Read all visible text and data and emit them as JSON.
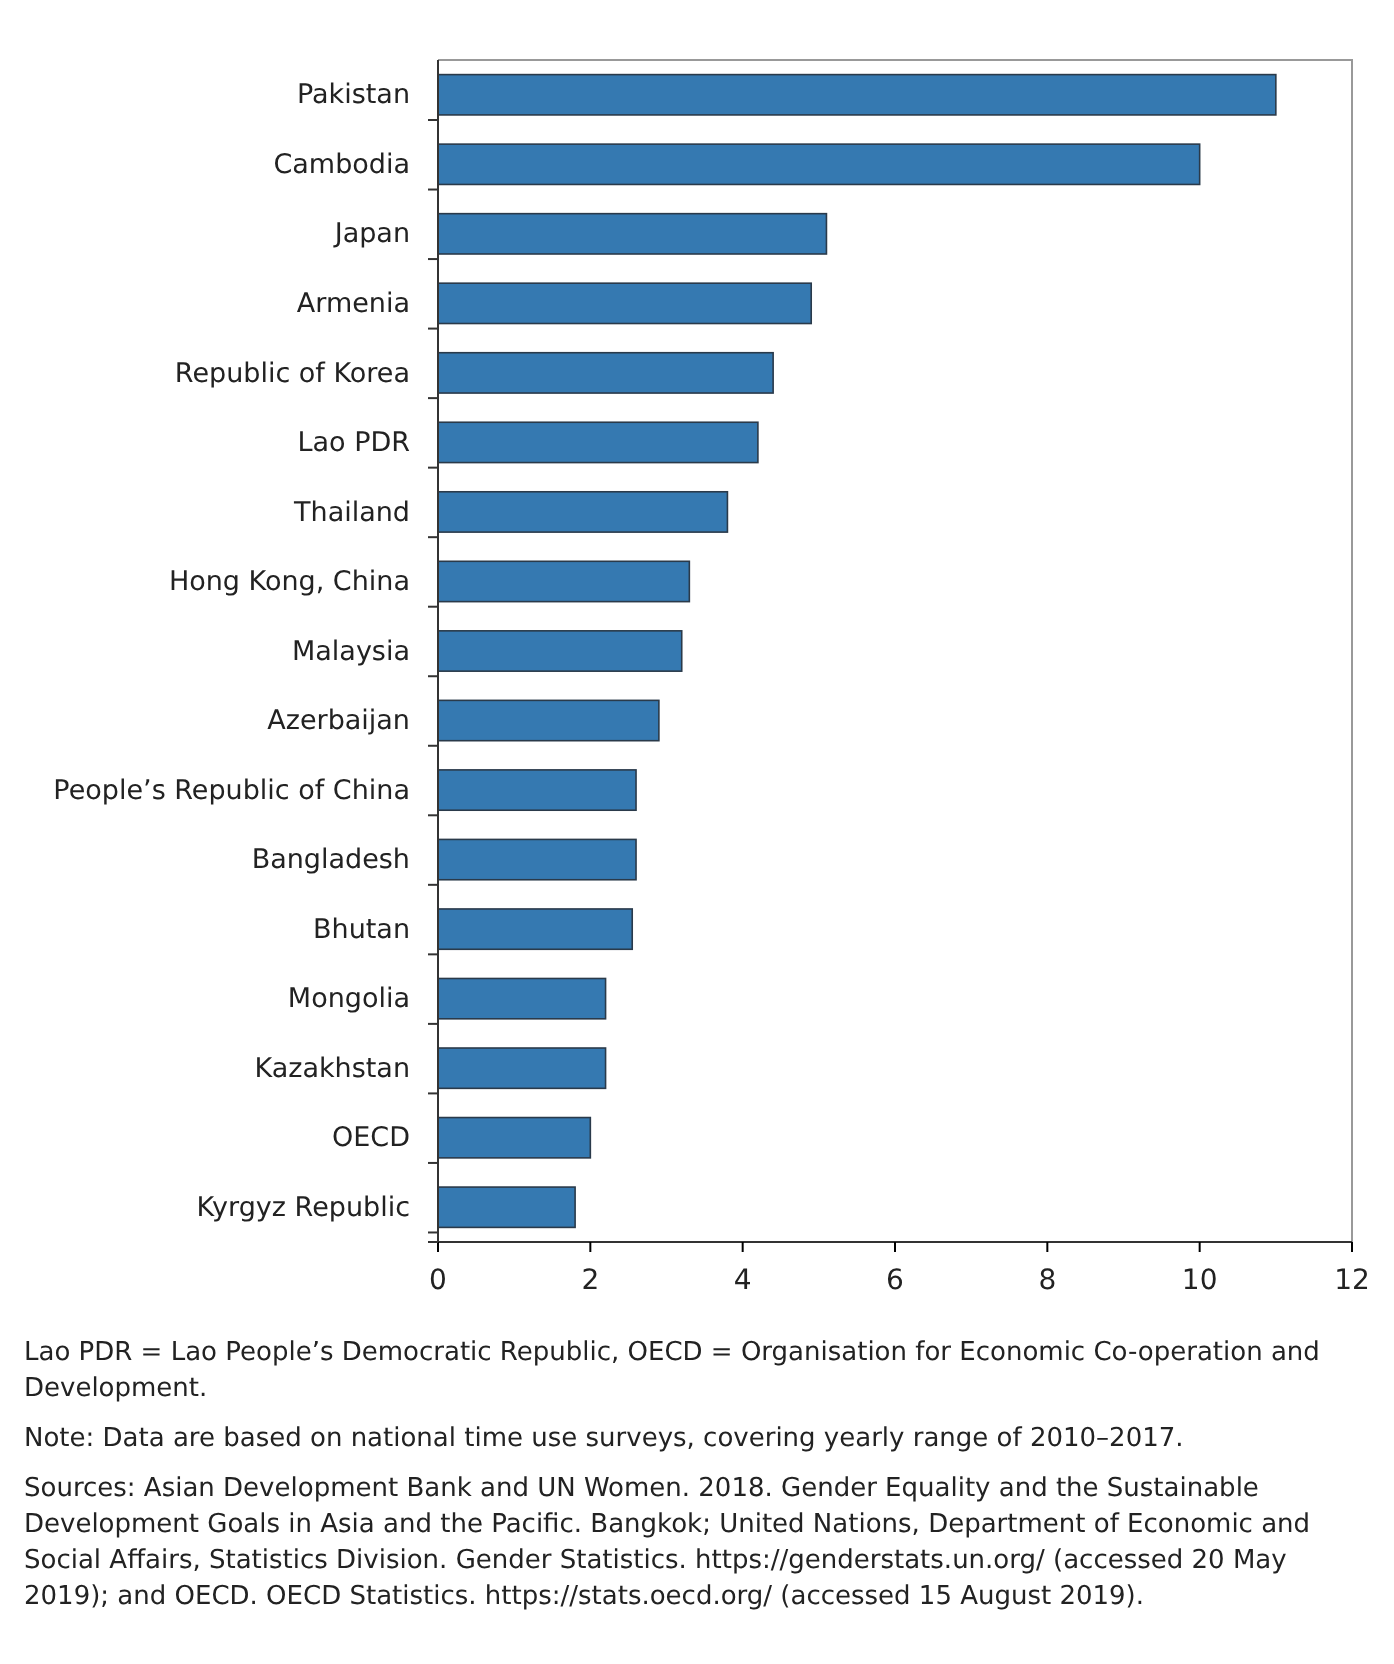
{
  "chart_data": {
    "type": "bar",
    "orientation": "horizontal",
    "categories": [
      "Pakistan",
      "Cambodia",
      "Japan",
      "Armenia",
      "Republic of Korea",
      "Lao PDR",
      "Thailand",
      "Hong Kong, China",
      "Malaysia",
      "Azerbaijan",
      "People’s Republic of China",
      "Bangladesh",
      "Bhutan",
      "Mongolia",
      "Kazakhstan",
      "OECD",
      "Kyrgyz Republic"
    ],
    "values": [
      11.0,
      10.0,
      5.1,
      4.9,
      4.4,
      4.2,
      3.8,
      3.3,
      3.2,
      2.9,
      2.6,
      2.6,
      2.55,
      2.2,
      2.2,
      2.0,
      1.8
    ],
    "color": "#3579b1",
    "xlim": [
      0,
      12
    ],
    "xticks": [
      0,
      2,
      4,
      6,
      8,
      10,
      12
    ],
    "grid": false,
    "annotations": [
      "Lao PDR = Lao People’s Democratic Republic, OECD = Organisation for Economic Co-operation and Development.",
      "Note: Data are based on national time use surveys, covering yearly range of 2010–2017.",
      "Sources: Asian Development Bank and UN Women. 2018. Gender Equality and the Sustainable Development Goals in Asia and the Pacific. Bangkok; United Nations, Department of Economic and Social Affairs, Statistics Division. Gender Statistics. https://genderstats.un.org/ (accessed 20 May 2019); and OECD. OECD Statistics. https://stats.oecd.org/ (accessed 15 August 2019)."
    ]
  }
}
